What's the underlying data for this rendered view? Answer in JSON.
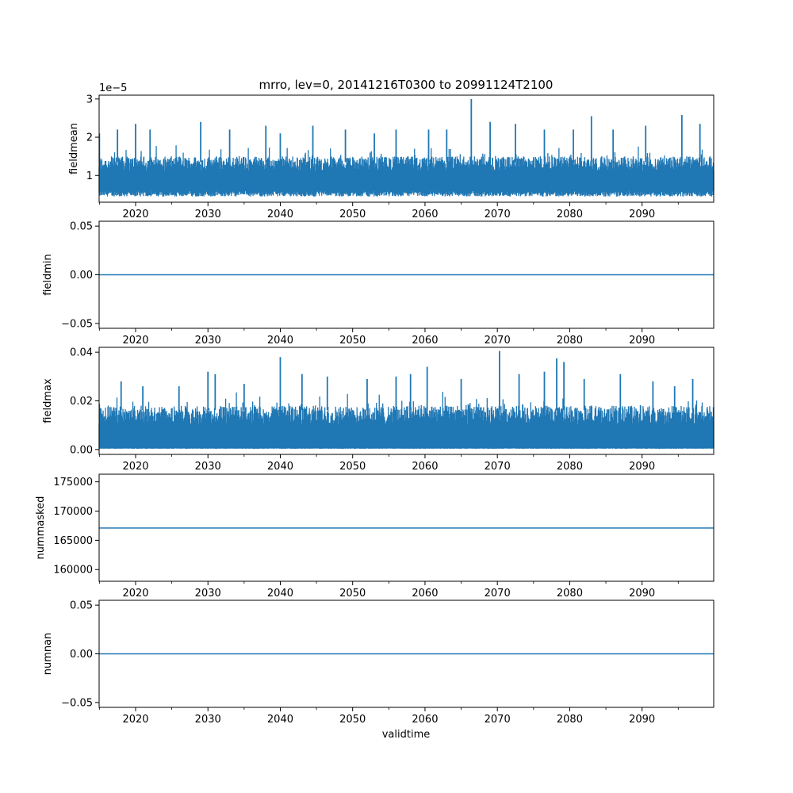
{
  "figure": {
    "title": "mrro, lev=0, 20141216T0300 to 20991124T2100",
    "xlabel": "validtime",
    "line_color": "#1f77b4"
  },
  "chart_data": [
    {
      "type": "line",
      "name": "fieldmean",
      "ylabel": "fieldmean",
      "scale_label": "1e−5",
      "xlim": [
        2014.96,
        2099.9
      ],
      "ylim": [
        0.3,
        3.1
      ],
      "x_ticks": [
        2020,
        2030,
        2040,
        2050,
        2060,
        2070,
        2080,
        2090
      ],
      "x_tick_labels": [
        "2020",
        "2030",
        "2040",
        "2050",
        "2060",
        "2070",
        "2080",
        "2090"
      ],
      "y_ticks": [
        1,
        2,
        3
      ],
      "y_tick_labels": [
        "1",
        "2",
        "3"
      ],
      "series": {
        "kind": "noisy",
        "base_low": 0.6,
        "base_high": 1.5,
        "floor": 0.45,
        "peaks": [
          [
            2015.0,
            2.1
          ],
          [
            2017.5,
            2.2
          ],
          [
            2020.0,
            2.35
          ],
          [
            2022.0,
            2.2
          ],
          [
            2029.0,
            2.4
          ],
          [
            2033.0,
            2.2
          ],
          [
            2038.0,
            2.3
          ],
          [
            2040.0,
            2.1
          ],
          [
            2044.5,
            2.3
          ],
          [
            2049.0,
            2.2
          ],
          [
            2053.0,
            2.1
          ],
          [
            2056.0,
            2.2
          ],
          [
            2060.5,
            2.2
          ],
          [
            2063.0,
            2.2
          ],
          [
            2066.4,
            3.0
          ],
          [
            2069.0,
            2.4
          ],
          [
            2072.5,
            2.35
          ],
          [
            2076.5,
            2.2
          ],
          [
            2080.5,
            2.2
          ],
          [
            2083.0,
            2.55
          ],
          [
            2086.0,
            2.2
          ],
          [
            2090.5,
            2.3
          ],
          [
            2095.5,
            2.58
          ],
          [
            2098.0,
            2.35
          ]
        ]
      }
    },
    {
      "type": "line",
      "name": "fieldmin",
      "ylabel": "fieldmin",
      "xlim": [
        2014.96,
        2099.9
      ],
      "ylim": [
        -0.055,
        0.055
      ],
      "x_ticks": [
        2020,
        2030,
        2040,
        2050,
        2060,
        2070,
        2080,
        2090
      ],
      "x_tick_labels": [
        "2020",
        "2030",
        "2040",
        "2050",
        "2060",
        "2070",
        "2080",
        "2090"
      ],
      "y_ticks": [
        -0.05,
        0.0,
        0.05
      ],
      "y_tick_labels": [
        "−0.05",
        "0.00",
        "0.05"
      ],
      "series": {
        "kind": "constant",
        "value": 0.0
      }
    },
    {
      "type": "line",
      "name": "fieldmax",
      "ylabel": "fieldmax",
      "xlim": [
        2014.96,
        2099.9
      ],
      "ylim": [
        -0.002,
        0.042
      ],
      "x_ticks": [
        2020,
        2030,
        2040,
        2050,
        2060,
        2070,
        2080,
        2090
      ],
      "x_tick_labels": [
        "2020",
        "2030",
        "2040",
        "2050",
        "2060",
        "2070",
        "2080",
        "2090"
      ],
      "y_ticks": [
        0.0,
        0.02,
        0.04
      ],
      "y_tick_labels": [
        "0.00",
        "0.02",
        "0.04"
      ],
      "series": {
        "kind": "noisy",
        "base_low": 0.0005,
        "base_high": 0.018,
        "floor": 0.0003,
        "peaks": [
          [
            2018.0,
            0.028
          ],
          [
            2021.0,
            0.026
          ],
          [
            2026.0,
            0.026
          ],
          [
            2030.0,
            0.032
          ],
          [
            2031.0,
            0.031
          ],
          [
            2035.0,
            0.027
          ],
          [
            2040.0,
            0.038
          ],
          [
            2043.0,
            0.031
          ],
          [
            2046.5,
            0.03
          ],
          [
            2052.0,
            0.029
          ],
          [
            2056.0,
            0.03
          ],
          [
            2058.0,
            0.031
          ],
          [
            2060.3,
            0.034
          ],
          [
            2065.0,
            0.029
          ],
          [
            2070.3,
            0.0405
          ],
          [
            2073.0,
            0.031
          ],
          [
            2076.5,
            0.032
          ],
          [
            2078.2,
            0.0375
          ],
          [
            2079.2,
            0.036
          ],
          [
            2082.0,
            0.029
          ],
          [
            2087.0,
            0.031
          ],
          [
            2091.5,
            0.028
          ],
          [
            2094.5,
            0.026
          ],
          [
            2097.0,
            0.029
          ]
        ]
      }
    },
    {
      "type": "line",
      "name": "nummasked",
      "ylabel": "nummasked",
      "xlim": [
        2014.96,
        2099.9
      ],
      "ylim": [
        158000,
        176300
      ],
      "x_ticks": [
        2020,
        2030,
        2040,
        2050,
        2060,
        2070,
        2080,
        2090
      ],
      "x_tick_labels": [
        "2020",
        "2030",
        "2040",
        "2050",
        "2060",
        "2070",
        "2080",
        "2090"
      ],
      "y_ticks": [
        160000,
        165000,
        170000,
        175000
      ],
      "y_tick_labels": [
        "160000",
        "165000",
        "170000",
        "175000"
      ],
      "series": {
        "kind": "constant",
        "value": 167100
      }
    },
    {
      "type": "line",
      "name": "numnan",
      "ylabel": "numnan",
      "xlim": [
        2014.96,
        2099.9
      ],
      "ylim": [
        -0.055,
        0.055
      ],
      "x_ticks": [
        2020,
        2030,
        2040,
        2050,
        2060,
        2070,
        2080,
        2090
      ],
      "x_tick_labels": [
        "2020",
        "2030",
        "2040",
        "2050",
        "2060",
        "2070",
        "2080",
        "2090"
      ],
      "y_ticks": [
        -0.05,
        0.0,
        0.05
      ],
      "y_tick_labels": [
        "−0.05",
        "0.00",
        "0.05"
      ],
      "series": {
        "kind": "constant",
        "value": 0.0
      }
    }
  ]
}
